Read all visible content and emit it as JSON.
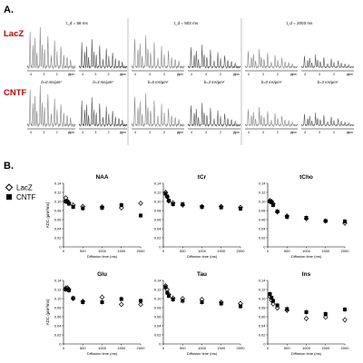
{
  "panel_a": {
    "label": "A.",
    "rows": [
      {
        "name": "LacZ",
        "color": "#c00000"
      },
      {
        "name": "CNTF",
        "color": "#c00000"
      }
    ],
    "columns": [
      {
        "td_label": "t_d = 58 ms",
        "amp": 1.0
      },
      {
        "td_label": "t_d = 503 ms",
        "amp": 0.8
      },
      {
        "td_label": "t_d = 2003 ms",
        "amp": 0.45
      }
    ],
    "b_labels": [
      "b=0 ms/µm²",
      "b=3 ms/µm²"
    ],
    "ppm_ticks": [
      "4",
      "3",
      "2",
      "1"
    ],
    "ppm_unit": "ppm"
  },
  "panel_b": {
    "label": "B.",
    "legend": [
      {
        "name": "LacZ",
        "marker": "open-diamond"
      },
      {
        "name": "CNTF",
        "marker": "filled-square"
      }
    ],
    "ylabel": "ADC (µm²/ms)",
    "xlabel": "Diffusion time (ms)"
  },
  "chart_data": [
    {
      "type": "scatter",
      "title": "NAA",
      "xlabel": "Diffusion time (ms)",
      "ylabel": "ADC (µm²/ms)",
      "xlim": [
        0,
        2000
      ],
      "ylim": [
        0,
        0.14
      ],
      "xticks": [
        0,
        500,
        1000,
        1500,
        2000
      ],
      "yticks": [
        0,
        0.02,
        0.04,
        0.06,
        0.08,
        0.1,
        0.12,
        0.14
      ],
      "series": [
        {
          "name": "LacZ",
          "x": [
            58,
            100,
            140,
            250,
            500,
            1000,
            1500,
            2000
          ],
          "y": [
            0.108,
            0.101,
            0.097,
            0.092,
            0.089,
            0.088,
            0.086,
            0.096
          ]
        },
        {
          "name": "CNTF",
          "x": [
            58,
            100,
            140,
            250,
            500,
            1000,
            1500,
            2000
          ],
          "y": [
            0.1,
            0.099,
            0.095,
            0.088,
            0.085,
            0.086,
            0.092,
            0.069
          ]
        }
      ]
    },
    {
      "type": "scatter",
      "title": "tCr",
      "xlabel": "Diffusion time (ms)",
      "ylabel": "ADC (µm²/ms)",
      "xlim": [
        0,
        2000
      ],
      "ylim": [
        0,
        0.14
      ],
      "xticks": [
        0,
        500,
        1000,
        1500,
        2000
      ],
      "yticks": [
        0,
        0.02,
        0.04,
        0.06,
        0.08,
        0.1,
        0.12,
        0.14
      ],
      "series": [
        {
          "name": "LacZ",
          "x": [
            58,
            100,
            140,
            250,
            500,
            1000,
            1500,
            2000
          ],
          "y": [
            0.12,
            0.11,
            0.101,
            0.097,
            0.092,
            0.089,
            0.089,
            0.087
          ]
        },
        {
          "name": "CNTF",
          "x": [
            58,
            100,
            140,
            250,
            500,
            1000,
            1500,
            2000
          ],
          "y": [
            0.117,
            0.111,
            0.102,
            0.094,
            0.094,
            0.088,
            0.087,
            0.084
          ]
        }
      ]
    },
    {
      "type": "scatter",
      "title": "tCho",
      "xlabel": "Diffusion time (ms)",
      "ylabel": "ADC (µm²/ms)",
      "xlim": [
        0,
        2000
      ],
      "ylim": [
        0,
        0.14
      ],
      "xticks": [
        0,
        500,
        1000,
        1500,
        2000
      ],
      "yticks": [
        0,
        0.02,
        0.04,
        0.06,
        0.08,
        0.1,
        0.12,
        0.14
      ],
      "series": [
        {
          "name": "LacZ",
          "x": [
            58,
            100,
            140,
            250,
            500,
            1000,
            1500,
            2000
          ],
          "y": [
            0.102,
            0.1,
            0.095,
            0.077,
            0.068,
            0.062,
            0.057,
            0.052
          ]
        },
        {
          "name": "CNTF",
          "x": [
            58,
            100,
            140,
            250,
            500,
            1000,
            1500,
            2000
          ],
          "y": [
            0.1,
            0.098,
            0.092,
            0.078,
            0.066,
            0.064,
            0.057,
            0.056
          ]
        }
      ]
    },
    {
      "type": "scatter",
      "title": "Glu",
      "xlabel": "Diffusion time (ms)",
      "ylabel": "ADC (µm²/ms)",
      "xlim": [
        0,
        2000
      ],
      "ylim": [
        0,
        0.14
      ],
      "xticks": [
        0,
        500,
        1000,
        1500,
        2000
      ],
      "yticks": [
        0,
        0.02,
        0.04,
        0.06,
        0.08,
        0.1,
        0.12,
        0.14
      ],
      "series": [
        {
          "name": "LacZ",
          "x": [
            58,
            100,
            140,
            250,
            500,
            1000,
            1500,
            2000
          ],
          "y": [
            0.123,
            0.124,
            0.12,
            0.1,
            0.094,
            0.103,
            0.087,
            0.087
          ]
        },
        {
          "name": "CNTF",
          "x": [
            58,
            100,
            140,
            250,
            500,
            1000,
            1500,
            2000
          ],
          "y": [
            0.12,
            0.121,
            0.118,
            0.101,
            0.092,
            0.092,
            0.099,
            0.095
          ]
        }
      ]
    },
    {
      "type": "scatter",
      "title": "Tau",
      "xlabel": "Diffusion time (ms)",
      "ylabel": "ADC (µm²/ms)",
      "xlim": [
        0,
        2000
      ],
      "ylim": [
        0,
        0.14
      ],
      "xticks": [
        0,
        500,
        1000,
        1500,
        2000
      ],
      "yticks": [
        0,
        0.02,
        0.04,
        0.06,
        0.08,
        0.1,
        0.12,
        0.14
      ],
      "series": [
        {
          "name": "LacZ",
          "x": [
            58,
            100,
            140,
            250,
            500,
            1000,
            1500,
            2000
          ],
          "y": [
            0.128,
            0.12,
            0.109,
            0.101,
            0.1,
            0.098,
            0.092,
            0.089
          ]
        },
        {
          "name": "CNTF",
          "x": [
            58,
            100,
            140,
            250,
            500,
            1000,
            1500,
            2000
          ],
          "y": [
            0.125,
            0.113,
            0.106,
            0.098,
            0.095,
            0.092,
            0.089,
            0.083
          ]
        }
      ]
    },
    {
      "type": "scatter",
      "title": "Ins",
      "xlabel": "Diffusion time (ms)",
      "ylabel": "ADC (µm²/ms)",
      "xlim": [
        0,
        2000
      ],
      "ylim": [
        0,
        0.14
      ],
      "xticks": [
        0,
        500,
        1000,
        1500,
        2000
      ],
      "yticks": [
        0,
        0.02,
        0.04,
        0.06,
        0.08,
        0.1,
        0.12,
        0.14
      ],
      "series": [
        {
          "name": "LacZ",
          "x": [
            58,
            100,
            140,
            250,
            500,
            1000,
            1500,
            2000
          ],
          "y": [
            0.104,
            0.096,
            0.088,
            0.079,
            0.074,
            0.056,
            0.059,
            0.053
          ]
        },
        {
          "name": "CNTF",
          "x": [
            58,
            100,
            140,
            250,
            500,
            1000,
            1500,
            2000
          ],
          "y": [
            0.11,
            0.102,
            0.095,
            0.085,
            0.077,
            0.07,
            0.066,
            0.076
          ]
        }
      ]
    }
  ]
}
